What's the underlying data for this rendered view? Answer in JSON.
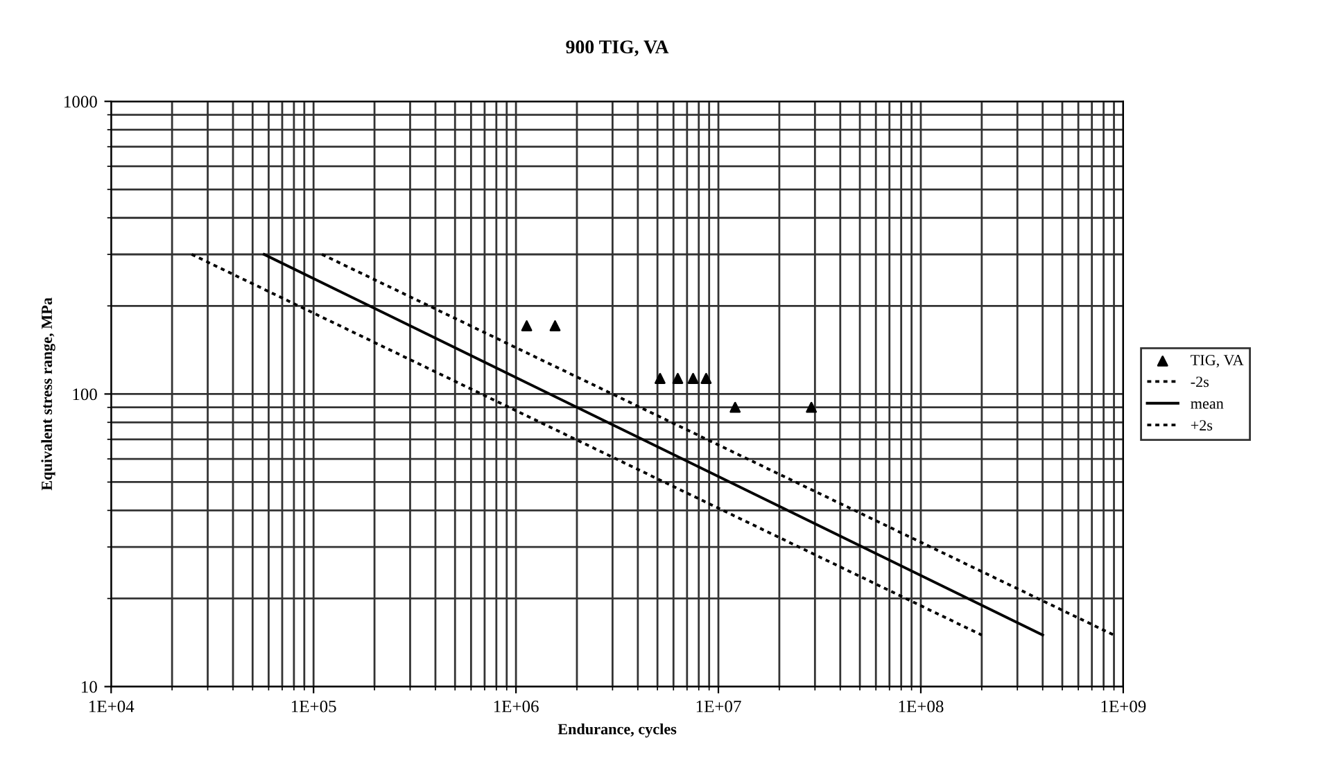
{
  "chart_data": {
    "type": "scatter",
    "title": "900 TIG, VA",
    "xlabel": "Endurance, cycles",
    "ylabel": "Equivalent stress range, MPa",
    "log": "xy",
    "grid": true,
    "legend": "right",
    "xlim": [
      10000,
      1000000000
    ],
    "ylim": [
      10,
      1000
    ],
    "xticks": [
      {
        "value": 10000,
        "label": "1E+04"
      },
      {
        "value": 100000,
        "label": "1E+05"
      },
      {
        "value": 1000000,
        "label": "1E+06"
      },
      {
        "value": 10000000,
        "label": "1E+07"
      },
      {
        "value": 100000000,
        "label": "1E+08"
      },
      {
        "value": 1000000000,
        "label": "1E+09"
      }
    ],
    "yticks": [
      10,
      100,
      1000
    ],
    "series": [
      {
        "name": "TIG, VA",
        "marker": "triangle",
        "color": "#000000",
        "x": [
          1130000,
          1560000,
          5150000,
          6300000,
          7500000,
          8700000,
          12100000,
          28800000
        ],
        "values": [
          171,
          171,
          113,
          113,
          113,
          113,
          90,
          90
        ]
      },
      {
        "name": "-2s",
        "type": "line",
        "line_style": "dotted",
        "marker": "none",
        "color": "#000000",
        "x": [
          110000,
          900000000
        ],
        "values": [
          300,
          15
        ]
      },
      {
        "name": "mean",
        "type": "line",
        "line_style": "solid",
        "marker": "none",
        "color": "#000000",
        "x": [
          57000,
          400000000
        ],
        "values": [
          300,
          15
        ]
      },
      {
        "name": "+2s",
        "type": "line",
        "line_style": "dotted",
        "marker": "none",
        "color": "#000000",
        "x": [
          25000,
          200000000
        ],
        "values": [
          300,
          15
        ]
      }
    ]
  }
}
